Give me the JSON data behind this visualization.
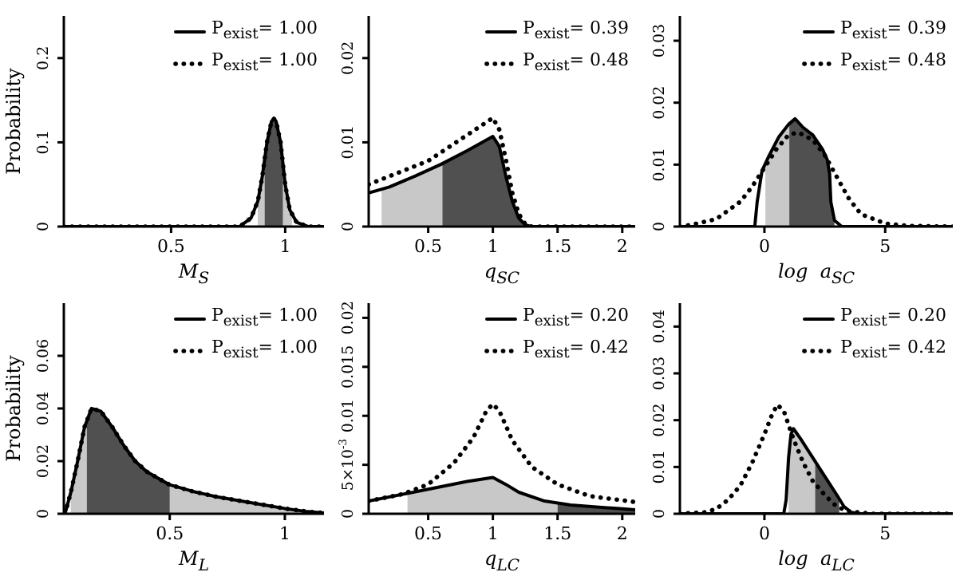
{
  "chart_data": [
    {
      "type": "line",
      "ylabel": "Probability",
      "xlabel": "M$_{S}$",
      "xlim": [
        0.03,
        1.17
      ],
      "xticks": [
        0.5,
        1
      ],
      "ylim": [
        0,
        0.25
      ],
      "yticks": [
        0,
        0.1,
        0.2
      ],
      "legend": "top right",
      "series": [
        {
          "type": "area",
          "color": "#c8c8c8",
          "x": [
            0.88,
            0.9,
            0.91
          ],
          "values": [
            0.03,
            0.06,
            0.08
          ]
        },
        {
          "type": "area",
          "color": "#c8c8c8",
          "x": [
            0.99,
            1.0,
            1.02,
            1.03
          ],
          "values": [
            0.075,
            0.05,
            0.02,
            0.012
          ]
        },
        {
          "type": "area",
          "color": "#505050",
          "x": [
            0.91,
            0.92,
            0.94,
            0.95,
            0.96,
            0.98,
            0.99
          ],
          "values": [
            0.08,
            0.1,
            0.125,
            0.128,
            0.125,
            0.1,
            0.075
          ]
        },
        {
          "name": "P$_{exist}$= 1.00",
          "color": "#000000",
          "line_style": "solid",
          "x": [
            0.03,
            0.8,
            0.85,
            0.88,
            0.9,
            0.92,
            0.94,
            0.95,
            0.96,
            0.98,
            1.0,
            1.02,
            1.05,
            1.1,
            1.17
          ],
          "values": [
            0,
            0,
            0.01,
            0.03,
            0.06,
            0.1,
            0.125,
            0.128,
            0.125,
            0.1,
            0.05,
            0.02,
            0.005,
            0,
            0
          ]
        },
        {
          "name": "P$_{exist}$= 1.00",
          "color": "#000000",
          "line_style": "dotted",
          "x": [
            0.03,
            0.8,
            0.85,
            0.88,
            0.9,
            0.92,
            0.94,
            0.95,
            0.96,
            0.98,
            1.0,
            1.02,
            1.05,
            1.1,
            1.17
          ],
          "values": [
            0,
            0,
            0.01,
            0.03,
            0.06,
            0.1,
            0.125,
            0.128,
            0.125,
            0.1,
            0.05,
            0.02,
            0.005,
            0,
            0
          ]
        }
      ]
    },
    {
      "type": "line",
      "xlabel": "q$_{SC}$",
      "xlim": [
        0.04,
        2.1
      ],
      "xticks": [
        0.5,
        1,
        1.5,
        2
      ],
      "ylim": [
        0,
        0.025
      ],
      "yticks": [
        0,
        0.01,
        0.02
      ],
      "legend": "top right",
      "series": [
        {
          "type": "area",
          "color": "#c8c8c8",
          "x": [
            0.14,
            0.4,
            0.61
          ],
          "values": [
            0.0044,
            0.006,
            0.0074
          ]
        },
        {
          "type": "area",
          "color": "#505050",
          "x": [
            0.61,
            0.8,
            1.0,
            1.05,
            1.1,
            1.15,
            1.2,
            1.25,
            1.3
          ],
          "values": [
            0.0074,
            0.009,
            0.0107,
            0.0095,
            0.006,
            0.003,
            0.001,
            0.0002,
            0
          ]
        },
        {
          "name": "P$_{exist}$= 0.39",
          "color": "#000000",
          "line_style": "solid",
          "x": [
            0.04,
            0.2,
            0.4,
            0.6,
            0.8,
            1.0,
            1.05,
            1.1,
            1.15,
            1.2,
            1.25,
            1.3,
            2.1
          ],
          "values": [
            0.004,
            0.0047,
            0.006,
            0.0074,
            0.009,
            0.0107,
            0.0095,
            0.006,
            0.003,
            0.001,
            0.0002,
            0,
            0
          ]
        },
        {
          "name": "P$_{exist}$= 0.48",
          "color": "#000000",
          "line_style": "dotted",
          "x": [
            0.04,
            0.5,
            1.0,
            1.05,
            1.1,
            1.15,
            1.2,
            1.25,
            1.3,
            2.1
          ],
          "values": [
            0.005,
            0.0078,
            0.0129,
            0.0115,
            0.008,
            0.004,
            0.0015,
            0.0003,
            0,
            0
          ]
        }
      ]
    },
    {
      "type": "line",
      "xlabel": "log  a$_{SC}$",
      "xlim": [
        -3.5,
        7.8
      ],
      "xticks": [
        0,
        5
      ],
      "ylim": [
        0,
        0.034
      ],
      "yticks": [
        0,
        0.01,
        0.02,
        0.03
      ],
      "legend": "top right",
      "series": [
        {
          "type": "area",
          "color": "#c8c8c8",
          "x": [
            0.04,
            0.2,
            0.6,
            1.03
          ],
          "values": [
            0.0105,
            0.0115,
            0.0145,
            0.0164
          ]
        },
        {
          "type": "area",
          "color": "#505050",
          "x": [
            1.03,
            1.27,
            1.6,
            2.0,
            2.4,
            2.6,
            2.7,
            2.75,
            2.9
          ],
          "values": [
            0.0164,
            0.0174,
            0.016,
            0.0148,
            0.0125,
            0.0108,
            0.0085,
            0.004,
            0.001
          ]
        },
        {
          "name": "P$_{exist}$= 0.39",
          "color": "#000000",
          "line_style": "solid",
          "x": [
            -3.5,
            -0.4,
            -0.3,
            -0.1,
            0.2,
            0.6,
            1.0,
            1.27,
            1.6,
            2.0,
            2.4,
            2.6,
            2.7,
            2.75,
            2.9,
            3.2,
            7.8
          ],
          "values": [
            0,
            0,
            0.004,
            0.009,
            0.0115,
            0.0145,
            0.0165,
            0.0174,
            0.016,
            0.0148,
            0.0125,
            0.0108,
            0.0085,
            0.004,
            0.001,
            0,
            0
          ]
        },
        {
          "name": "P$_{exist}$= 0.48",
          "color": "#000000",
          "line_style": "dotted",
          "x": [
            -3.5,
            -3,
            -2,
            -1,
            -0.5,
            0,
            0.5,
            1,
            1.4,
            2,
            2.5,
            3,
            3.5,
            4,
            5,
            6,
            7.8
          ],
          "values": [
            0,
            0.0003,
            0.0012,
            0.004,
            0.0065,
            0.0095,
            0.0125,
            0.0148,
            0.0152,
            0.014,
            0.0115,
            0.008,
            0.0045,
            0.002,
            0.0005,
            0.0001,
            0
          ]
        }
      ]
    },
    {
      "type": "line",
      "ylabel": "Probability",
      "xlabel": "M$_{L}$",
      "xlim": [
        0.04,
        1.17
      ],
      "xticks": [
        0.5,
        1
      ],
      "ylim": [
        0,
        0.08
      ],
      "yticks": [
        0,
        0.02,
        0.04,
        0.06
      ],
      "legend": "top right",
      "series": [
        {
          "type": "area",
          "color": "#c8c8c8",
          "x": [
            0.07,
            0.1,
            0.13,
            0.14
          ],
          "values": [
            0.008,
            0.02,
            0.033,
            0.036
          ]
        },
        {
          "type": "area",
          "color": "#c8c8c8",
          "x": [
            0.5,
            0.6,
            0.7,
            0.8,
            0.9,
            1.0,
            1.1,
            1.14
          ],
          "values": [
            0.011,
            0.0085,
            0.0065,
            0.005,
            0.0035,
            0.002,
            0.0008,
            0.0005
          ]
        },
        {
          "type": "area",
          "color": "#505050",
          "x": [
            0.14,
            0.16,
            0.2,
            0.25,
            0.3,
            0.35,
            0.4,
            0.5
          ],
          "values": [
            0.036,
            0.04,
            0.039,
            0.033,
            0.026,
            0.02,
            0.016,
            0.011
          ]
        },
        {
          "name": "P$_{exist}$= 1.00",
          "color": "#000000",
          "line_style": "solid",
          "x": [
            0.045,
            0.07,
            0.1,
            0.13,
            0.16,
            0.2,
            0.25,
            0.3,
            0.35,
            0.4,
            0.5,
            0.6,
            0.7,
            0.8,
            0.9,
            1.0,
            1.1,
            1.17
          ],
          "values": [
            0,
            0.008,
            0.02,
            0.033,
            0.04,
            0.039,
            0.033,
            0.026,
            0.02,
            0.016,
            0.011,
            0.0085,
            0.0065,
            0.005,
            0.0035,
            0.002,
            0.0008,
            0.0003
          ]
        },
        {
          "name": "P$_{exist}$= 1.00",
          "color": "#000000",
          "line_style": "dotted",
          "x": [
            0.045,
            0.07,
            0.1,
            0.13,
            0.16,
            0.2,
            0.25,
            0.3,
            0.35,
            0.4,
            0.5,
            0.6,
            0.7,
            0.8,
            0.9,
            1.0,
            1.1,
            1.17
          ],
          "values": [
            0,
            0.008,
            0.02,
            0.033,
            0.04,
            0.039,
            0.033,
            0.026,
            0.02,
            0.016,
            0.011,
            0.0085,
            0.0065,
            0.005,
            0.0035,
            0.002,
            0.0008,
            0.0003
          ]
        }
      ]
    },
    {
      "type": "line",
      "xlabel": "q$_{LC}$",
      "xlim": [
        0.04,
        2.1
      ],
      "xticks": [
        0.5,
        1,
        1.5,
        2
      ],
      "ylim": [
        0,
        0.0215
      ],
      "yticks": [
        0,
        {
          "value": 0.005,
          "label": "5×10$^{-3}$"
        },
        0.01,
        0.015,
        0.02
      ],
      "legend": "top right",
      "series": [
        {
          "type": "area",
          "color": "#c8c8c8",
          "x": [
            0.34,
            0.5,
            0.8,
            1.0,
            1.1,
            1.2,
            1.4,
            1.5
          ],
          "values": [
            0.0022,
            0.0025,
            0.0033,
            0.0037,
            0.003,
            0.0022,
            0.0013,
            0.0011
          ]
        },
        {
          "type": "area",
          "color": "#505050",
          "x": [
            1.5,
            1.6,
            2.0,
            2.1
          ],
          "values": [
            0.0011,
            0.0009,
            0.0005,
            0.0004
          ]
        },
        {
          "name": "P$_{exist}$= 0.20",
          "color": "#000000",
          "line_style": "solid",
          "x": [
            0.04,
            0.5,
            0.8,
            1.0,
            1.1,
            1.2,
            1.4,
            1.6,
            2.0,
            2.1
          ],
          "values": [
            0.0013,
            0.0025,
            0.0033,
            0.0037,
            0.003,
            0.0022,
            0.0013,
            0.0009,
            0.0005,
            0.0004
          ]
        },
        {
          "name": "P$_{exist}$= 0.42",
          "color": "#000000",
          "line_style": "dotted",
          "x": [
            0.04,
            0.3,
            0.5,
            0.7,
            0.85,
            0.95,
            1.0,
            1.05,
            1.15,
            1.3,
            1.5,
            1.75,
            2.1
          ],
          "values": [
            0.0013,
            0.002,
            0.003,
            0.0052,
            0.0078,
            0.0105,
            0.0112,
            0.0105,
            0.0075,
            0.0048,
            0.003,
            0.0018,
            0.0012
          ]
        }
      ]
    },
    {
      "type": "line",
      "xlabel": "log  a$_{LC}$",
      "xlim": [
        -3.5,
        7.8
      ],
      "xticks": [
        0,
        5
      ],
      "ylim": [
        0,
        0.045
      ],
      "yticks": [
        0,
        0.01,
        0.02,
        0.03,
        0.04
      ],
      "legend": "top right",
      "series": [
        {
          "type": "area",
          "color": "#c8c8c8",
          "x": [
            1.0,
            1.1,
            1.2,
            1.5,
            2.0,
            2.1
          ],
          "values": [
            0.012,
            0.017,
            0.0182,
            0.016,
            0.012,
            0.0112
          ]
        },
        {
          "type": "area",
          "color": "#505050",
          "x": [
            2.1,
            2.5,
            3.0,
            3.1
          ],
          "values": [
            0.0112,
            0.008,
            0.004,
            0.0035
          ]
        },
        {
          "name": "P$_{exist}$= 0.20",
          "color": "#000000",
          "line_style": "solid",
          "x": [
            -3.5,
            0.8,
            0.9,
            1.0,
            1.1,
            1.2,
            1.5,
            2.0,
            2.5,
            3.0,
            3.3,
            3.6,
            4.0,
            7.8
          ],
          "values": [
            0,
            0,
            0.003,
            0.012,
            0.017,
            0.0182,
            0.016,
            0.012,
            0.008,
            0.004,
            0.0015,
            0.0003,
            0,
            0
          ]
        },
        {
          "name": "P$_{exist}$= 0.42",
          "color": "#000000",
          "line_style": "dotted",
          "x": [
            -3.5,
            -2.5,
            -2,
            -1.5,
            -1,
            -0.5,
            0,
            0.3,
            0.53,
            0.8,
            1.2,
            1.6,
            2,
            2.5,
            3,
            3.5,
            4.5,
            7.8
          ],
          "values": [
            0,
            0.0003,
            0.001,
            0.003,
            0.006,
            0.011,
            0.017,
            0.021,
            0.0233,
            0.022,
            0.016,
            0.011,
            0.007,
            0.004,
            0.0015,
            0.0005,
            0,
            0
          ]
        }
      ]
    }
  ]
}
